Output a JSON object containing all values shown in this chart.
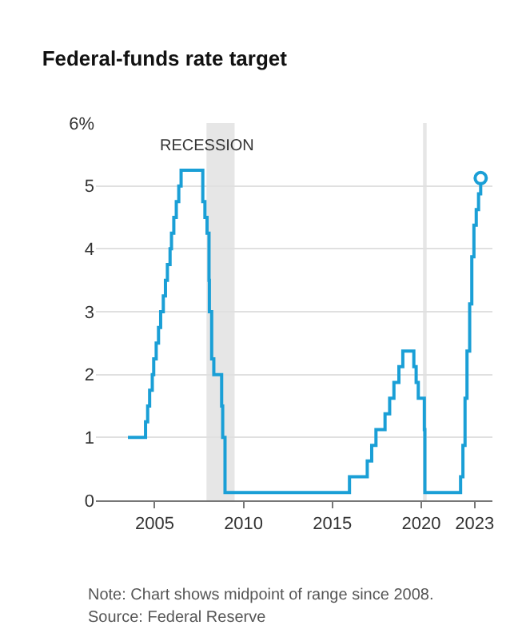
{
  "chart_data": {
    "type": "step",
    "title": "Federal-funds rate target",
    "series": [
      {
        "color": "#1a9fd6",
        "marker": "none",
        "x": [
          2003.5,
          2004.49,
          2004.61,
          2004.72,
          2004.87,
          2004.95,
          2005.09,
          2005.22,
          2005.34,
          2005.49,
          2005.61,
          2005.72,
          2005.87,
          2005.95,
          2006.08,
          2006.22,
          2006.36,
          2006.49,
          2007.71,
          2007.83,
          2007.95,
          2008.06,
          2008.08,
          2008.21,
          2008.33,
          2008.77,
          2008.83,
          2008.96,
          2015.96,
          2016.96,
          2017.21,
          2017.45,
          2017.96,
          2018.22,
          2018.46,
          2018.74,
          2018.96,
          2019.58,
          2019.71,
          2019.83,
          2020.17,
          2020.2,
          2022.21,
          2022.34,
          2022.46,
          2022.57,
          2022.72,
          2022.84,
          2022.96,
          2023.09,
          2023.22,
          2023.34
        ],
        "values": [
          1.0,
          1.25,
          1.5,
          1.75,
          2.0,
          2.25,
          2.5,
          2.75,
          3.0,
          3.25,
          3.5,
          3.75,
          4.0,
          4.25,
          4.5,
          4.75,
          5.0,
          5.25,
          4.75,
          4.5,
          4.25,
          3.5,
          3.0,
          2.25,
          2.0,
          1.5,
          1.0,
          0.125,
          0.375,
          0.625,
          0.875,
          1.125,
          1.375,
          1.625,
          1.875,
          2.125,
          2.375,
          2.125,
          1.875,
          1.625,
          1.125,
          0.125,
          0.375,
          0.875,
          1.625,
          2.375,
          3.125,
          3.875,
          4.375,
          4.625,
          4.875,
          5.125
        ]
      },
      {
        "type": "scatter",
        "marker": "circle",
        "color": "#1a9fd6",
        "x": [
          2023.34
        ],
        "values": [
          5.125
        ]
      }
    ],
    "xlim": [
      2001.7,
      2024
    ],
    "xticks": [
      2005,
      2010,
      2015,
      2020,
      2023
    ],
    "ylim": [
      0,
      6
    ],
    "yticks": [
      0,
      1,
      2,
      3,
      4,
      {
        "value": 6,
        "label": "6%"
      },
      5
    ],
    "grid": "y",
    "line_style": "solid",
    "bands": [
      {
        "axis": "x",
        "from": 2007.92,
        "to": 2009.5,
        "label": "RECESSION",
        "color": "#e6e6e6"
      },
      {
        "axis": "x",
        "from": 2020.1,
        "to": 2020.3,
        "color": "#e6e6e6"
      }
    ],
    "annotations": [
      "Note: Chart shows midpoint of range since 2008.",
      "Source: Federal Reserve"
    ]
  }
}
